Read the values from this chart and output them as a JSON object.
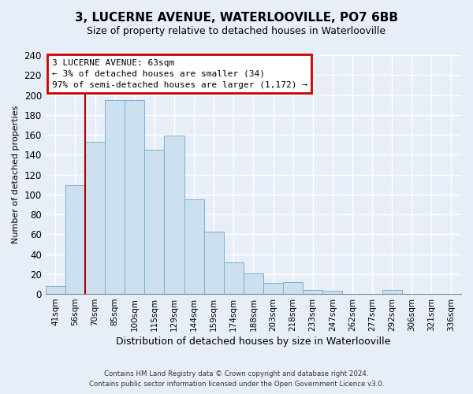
{
  "title": "3, LUCERNE AVENUE, WATERLOOVILLE, PO7 6BB",
  "subtitle": "Size of property relative to detached houses in Waterlooville",
  "xlabel": "Distribution of detached houses by size in Waterlooville",
  "ylabel": "Number of detached properties",
  "bar_labels": [
    "41sqm",
    "56sqm",
    "70sqm",
    "85sqm",
    "100sqm",
    "115sqm",
    "129sqm",
    "144sqm",
    "159sqm",
    "174sqm",
    "188sqm",
    "203sqm",
    "218sqm",
    "233sqm",
    "247sqm",
    "262sqm",
    "277sqm",
    "292sqm",
    "306sqm",
    "321sqm",
    "336sqm"
  ],
  "bar_values": [
    8,
    109,
    153,
    195,
    195,
    145,
    159,
    95,
    63,
    32,
    21,
    11,
    12,
    4,
    3,
    0,
    0,
    4,
    0,
    0,
    0
  ],
  "bar_color": "#cce0f0",
  "bar_edge_color": "#7ab0d4",
  "property_line_label": "3 LUCERNE AVENUE: 63sqm",
  "annotation_smaller": "← 3% of detached houses are smaller (34)",
  "annotation_larger": "97% of semi-detached houses are larger (1,172) →",
  "property_line_color": "#aa0000",
  "annotation_box_edge": "#cc0000",
  "ylim": [
    0,
    240
  ],
  "yticks": [
    0,
    20,
    40,
    60,
    80,
    100,
    120,
    140,
    160,
    180,
    200,
    220,
    240
  ],
  "footer1": "Contains HM Land Registry data © Crown copyright and database right 2024.",
  "footer2": "Contains public sector information licensed under the Open Government Licence v3.0.",
  "background_color": "#e8eef8",
  "plot_bg_color": "#e8eef8",
  "grid_color": "#ffffff"
}
